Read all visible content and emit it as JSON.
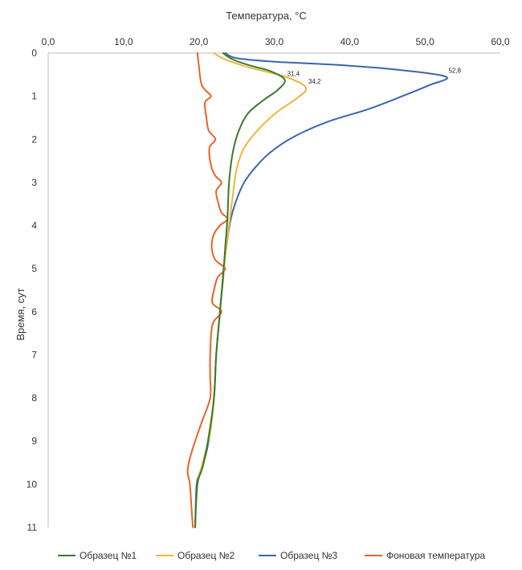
{
  "chart_data": {
    "type": "line",
    "title": "",
    "xlabel": "Температура, °C",
    "ylabel": "Время, сут",
    "x_axis_position": "top",
    "y_axis_inverted": true,
    "xlim": [
      0,
      60
    ],
    "ylim": [
      0,
      11
    ],
    "x_ticks": [
      "0,0",
      "10,0",
      "20,0",
      "30,0",
      "40,0",
      "50,0",
      "60,0"
    ],
    "y_ticks": [
      "0",
      "1",
      "2",
      "3",
      "4",
      "5",
      "6",
      "7",
      "8",
      "9",
      "10",
      "11"
    ],
    "grid": false,
    "legend_position": "bottom",
    "series": [
      {
        "name": "Образец №1",
        "color": "#3a7a2a",
        "points": [
          [
            23.2,
            0
          ],
          [
            24.5,
            0.15
          ],
          [
            27,
            0.3
          ],
          [
            29.5,
            0.42
          ],
          [
            31.4,
            0.62
          ],
          [
            30.5,
            0.85
          ],
          [
            28.5,
            1.1
          ],
          [
            26.5,
            1.4
          ],
          [
            25.3,
            1.8
          ],
          [
            24.5,
            2.3
          ],
          [
            24,
            3
          ],
          [
            23.8,
            3.8
          ],
          [
            23.5,
            4.5
          ],
          [
            23.2,
            5.2
          ],
          [
            22.8,
            6
          ],
          [
            22.3,
            7
          ],
          [
            22,
            8
          ],
          [
            21.2,
            9
          ],
          [
            20.5,
            9.6
          ],
          [
            19.8,
            10
          ],
          [
            19.5,
            11
          ]
        ],
        "data_labels": [
          {
            "x": 31.4,
            "y": 0.62,
            "text": "31,4"
          }
        ]
      },
      {
        "name": "Образец №2",
        "color": "#f0b43c",
        "points": [
          [
            22,
            0
          ],
          [
            23.5,
            0.15
          ],
          [
            27,
            0.35
          ],
          [
            31.5,
            0.55
          ],
          [
            34.2,
            0.8
          ],
          [
            33,
            1.05
          ],
          [
            30.5,
            1.35
          ],
          [
            28,
            1.75
          ],
          [
            26,
            2.2
          ],
          [
            25,
            2.7
          ],
          [
            24.5,
            3.3
          ],
          [
            24,
            4
          ],
          [
            23.5,
            4.7
          ],
          [
            23.2,
            5.3
          ],
          [
            22.8,
            6
          ],
          [
            22.3,
            7
          ],
          [
            22,
            8
          ],
          [
            21.5,
            8.8
          ],
          [
            20.5,
            9.5
          ],
          [
            19.8,
            10
          ],
          [
            19.5,
            11
          ]
        ],
        "data_labels": [
          {
            "x": 34.2,
            "y": 0.8,
            "text": "34,2"
          }
        ]
      },
      {
        "name": "Образец №3",
        "color": "#3b64b0",
        "points": [
          [
            23.5,
            0
          ],
          [
            25,
            0.12
          ],
          [
            30,
            0.2
          ],
          [
            38,
            0.27
          ],
          [
            46,
            0.38
          ],
          [
            52.8,
            0.55
          ],
          [
            50.5,
            0.75
          ],
          [
            47,
            1
          ],
          [
            42.5,
            1.3
          ],
          [
            37,
            1.6
          ],
          [
            32.5,
            1.95
          ],
          [
            29.5,
            2.3
          ],
          [
            27.5,
            2.65
          ],
          [
            26,
            3
          ],
          [
            25,
            3.4
          ],
          [
            24.3,
            3.8
          ],
          [
            23.8,
            4.3
          ],
          [
            23.3,
            5
          ],
          [
            22.8,
            6
          ],
          [
            22.3,
            7
          ],
          [
            22,
            8
          ],
          [
            21.3,
            9
          ],
          [
            20.3,
            9.7
          ],
          [
            19.7,
            10
          ],
          [
            19.5,
            11
          ]
        ],
        "data_labels": [
          {
            "x": 52.8,
            "y": 0.55,
            "text": "52,8"
          }
        ]
      },
      {
        "name": "Фоновая температура",
        "color": "#e8632a",
        "points": [
          [
            19.8,
            0
          ],
          [
            20,
            0.3
          ],
          [
            20.3,
            0.7
          ],
          [
            20.8,
            0.85
          ],
          [
            21.6,
            1
          ],
          [
            20.8,
            1.15
          ],
          [
            21,
            1.5
          ],
          [
            21.3,
            1.8
          ],
          [
            22.2,
            2
          ],
          [
            21.4,
            2.2
          ],
          [
            21.6,
            2.6
          ],
          [
            22.2,
            2.85
          ],
          [
            23,
            3
          ],
          [
            22.3,
            3.2
          ],
          [
            22.6,
            3.5
          ],
          [
            23,
            3.7
          ],
          [
            23.8,
            3.85
          ],
          [
            22.8,
            4
          ],
          [
            22,
            4.2
          ],
          [
            21.7,
            4.5
          ],
          [
            22.2,
            4.8
          ],
          [
            23.5,
            5
          ],
          [
            22.5,
            5.2
          ],
          [
            22,
            5.5
          ],
          [
            21.8,
            5.8
          ],
          [
            23,
            6
          ],
          [
            21.8,
            6.3
          ],
          [
            21.5,
            7
          ],
          [
            21.5,
            7.5
          ],
          [
            21.5,
            8
          ],
          [
            20.5,
            8.5
          ],
          [
            19.5,
            9
          ],
          [
            18.8,
            9.4
          ],
          [
            18.5,
            9.7
          ],
          [
            18.8,
            10
          ],
          [
            19,
            10.5
          ],
          [
            19.2,
            11
          ]
        ]
      }
    ]
  }
}
